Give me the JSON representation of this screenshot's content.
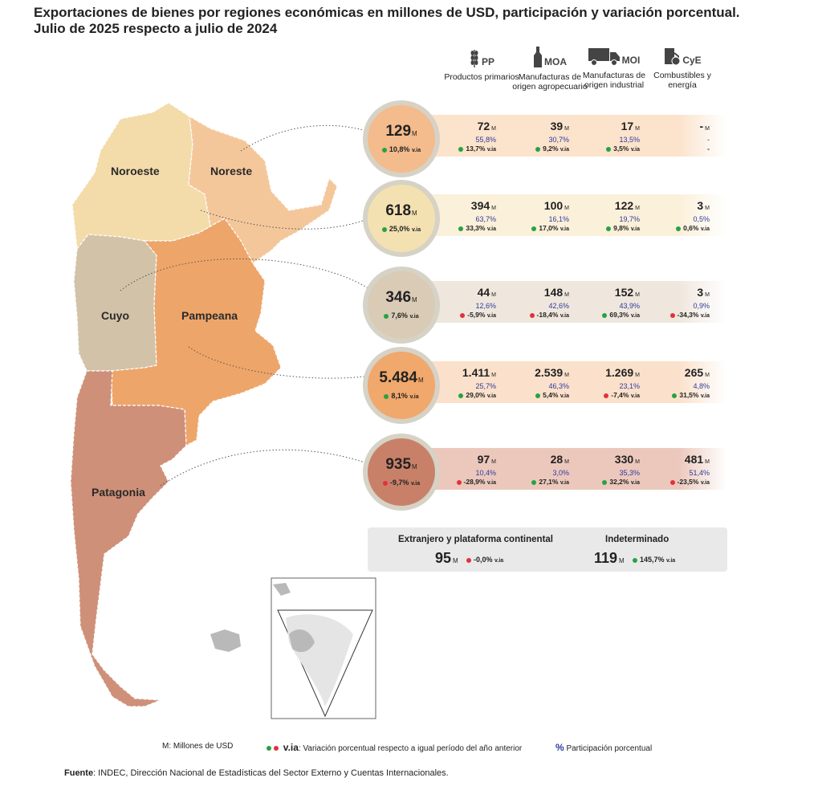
{
  "title": {
    "line1": "Exportaciones de bienes por regiones económicas en millones de USD, participación y variación porcentual.",
    "line2": "Julio de 2025 respecto a julio de 2024"
  },
  "columns": [
    {
      "code": "PP",
      "desc": "Productos primarios",
      "icon": "wheat-icon"
    },
    {
      "code": "MOA",
      "desc": "Manufacturas de origen agropecuario",
      "icon": "bottle-icon"
    },
    {
      "code": "MOI",
      "desc": "Manufacturas de origen industrial",
      "icon": "truck-icon"
    },
    {
      "code": "CyE",
      "desc": "Combustibles y energía",
      "icon": "fuel-icon"
    }
  ],
  "map_labels": {
    "noroeste": "Noroeste",
    "noreste": "Noreste",
    "cuyo": "Cuyo",
    "pampeana": "Pampeana",
    "patagonia": "Patagonia"
  },
  "unit": "M",
  "via_suffix": "v.ia",
  "regions": [
    {
      "total": "129",
      "via": "10,8%",
      "via_sign": "positive",
      "circle_color": "#f4bb8c",
      "band_color": "#fbe3cc",
      "cells": [
        {
          "value": "72",
          "share": "55,8%",
          "via": "13,7%",
          "via_sign": "positive"
        },
        {
          "value": "39",
          "share": "30,7%",
          "via": "9,2%",
          "via_sign": "positive"
        },
        {
          "value": "17",
          "share": "13,5%",
          "via": "3,5%",
          "via_sign": "positive"
        },
        {
          "value": "-",
          "share": "-",
          "via": "-",
          "via_sign": "none"
        }
      ]
    },
    {
      "total": "618",
      "via": "25,0%",
      "via_sign": "positive",
      "circle_color": "#f4e1b1",
      "band_color": "#fbf0d9",
      "cells": [
        {
          "value": "394",
          "share": "63,7%",
          "via": "33,3%",
          "via_sign": "positive"
        },
        {
          "value": "100",
          "share": "16,1%",
          "via": "17,0%",
          "via_sign": "positive"
        },
        {
          "value": "122",
          "share": "19,7%",
          "via": "9,8%",
          "via_sign": "positive"
        },
        {
          "value": "3",
          "share": "0,5%",
          "via": "0,6%",
          "via_sign": "positive"
        }
      ]
    },
    {
      "total": "346",
      "via": "7,6%",
      "via_sign": "positive",
      "circle_color": "#d9cbb6",
      "band_color": "#efe7dd",
      "cells": [
        {
          "value": "44",
          "share": "12,6%",
          "via": "-5,9%",
          "via_sign": "negative"
        },
        {
          "value": "148",
          "share": "42,6%",
          "via": "-18,4%",
          "via_sign": "negative"
        },
        {
          "value": "152",
          "share": "43,9%",
          "via": "69,3%",
          "via_sign": "positive"
        },
        {
          "value": "3",
          "share": "0,9%",
          "via": "-34,3%",
          "via_sign": "negative"
        }
      ]
    },
    {
      "total": "5.484",
      "via": "8,1%",
      "via_sign": "positive",
      "circle_color": "#f0a86c",
      "band_color": "#fbe1cb",
      "cells": [
        {
          "value": "1.411",
          "share": "25,7%",
          "via": "29,0%",
          "via_sign": "positive"
        },
        {
          "value": "2.539",
          "share": "46,3%",
          "via": "5,4%",
          "via_sign": "positive"
        },
        {
          "value": "1.269",
          "share": "23,1%",
          "via": "-7,4%",
          "via_sign": "negative"
        },
        {
          "value": "265",
          "share": "4,8%",
          "via": "31,5%",
          "via_sign": "positive"
        }
      ]
    },
    {
      "total": "935",
      "via": "-9,7%",
      "via_sign": "negative",
      "circle_color": "#c98069",
      "band_color": "#ecc8bc",
      "cells": [
        {
          "value": "97",
          "share": "10,4%",
          "via": "-28,9%",
          "via_sign": "negative"
        },
        {
          "value": "28",
          "share": "3,0%",
          "via": "27,1%",
          "via_sign": "positive"
        },
        {
          "value": "330",
          "share": "35,3%",
          "via": "32,2%",
          "via_sign": "positive"
        },
        {
          "value": "481",
          "share": "51,4%",
          "via": "-23,5%",
          "via_sign": "negative"
        }
      ]
    }
  ],
  "extra": {
    "foreign_label": "Extranjero y plataforma continental",
    "foreign_value": "95",
    "foreign_via": "-0,0%",
    "undetermined_label": "Indeterminado",
    "undetermined_value": "119",
    "undetermined_via": "145,7%"
  },
  "legend": {
    "unit_note": "M: Millones de USD",
    "via_code": "v.ia",
    "via_note": ": Variación porcentual respecto a igual período del año anterior",
    "pct_symbol": "%",
    "pct_note": "Participación porcentual"
  },
  "source": {
    "label": "Fuente",
    "text": ": INDEC, Dirección Nacional de Estadísticas del Sector Externo y Cuentas Internacionales."
  },
  "colors": {
    "noroeste": "#f3dcaa",
    "noreste": "#f4c79b",
    "cuyo": "#d2c2a8",
    "pampeana": "#eea56a",
    "patagonia": "#cf9079",
    "share_text": "#2f3a9c",
    "positive": "#27a243",
    "negative": "#e0323a"
  }
}
